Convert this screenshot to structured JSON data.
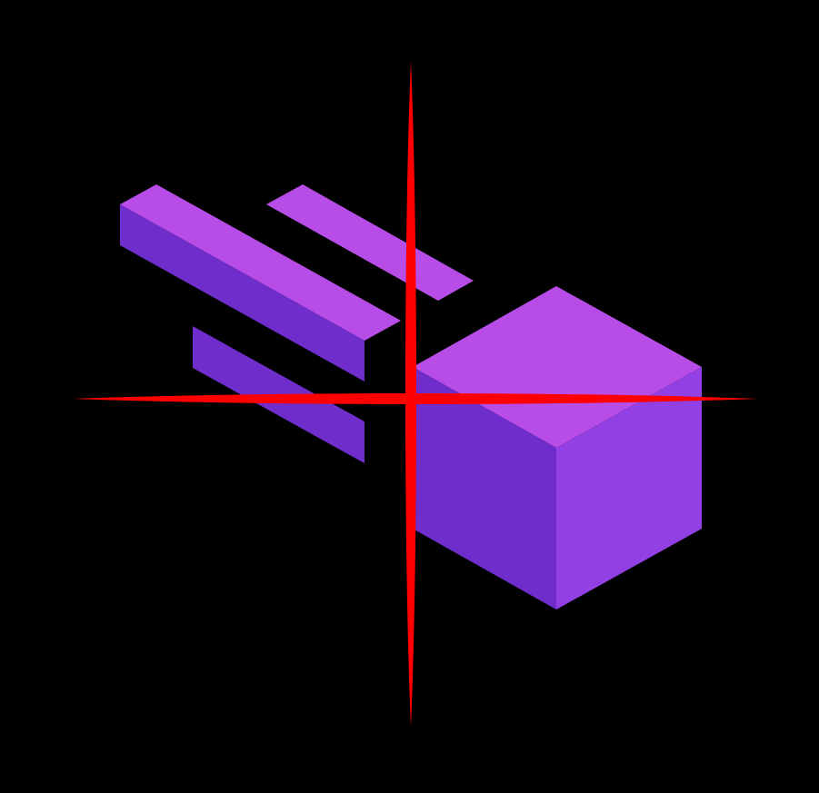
{
  "colors": {
    "background": "#000000",
    "top_face": "#b84ce6",
    "left_face": "#6f2dcc",
    "right_face": "#9240e3",
    "crosshair": "#ff0000"
  },
  "icons": {
    "logo": "fast-moving-cube-logo",
    "overlay": "crosshair-icon"
  }
}
